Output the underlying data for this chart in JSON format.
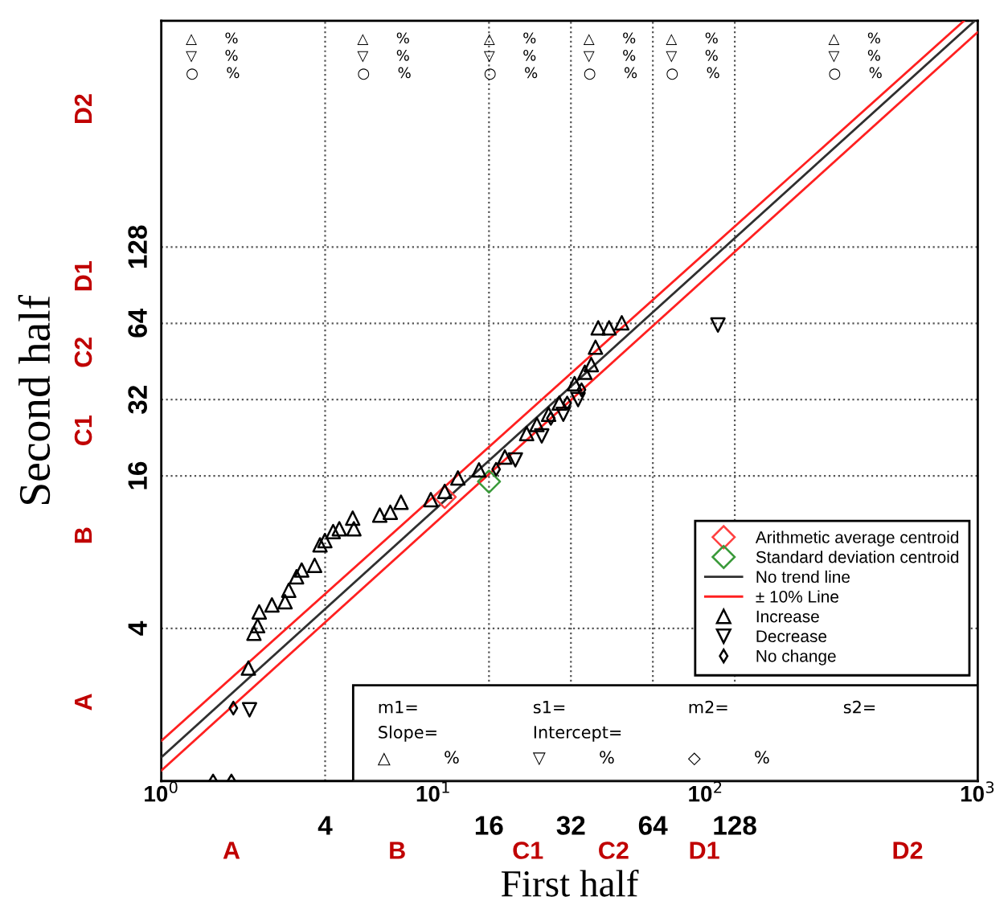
{
  "chart_data": {
    "type": "scatter",
    "xlabel": "First half",
    "ylabel": "Second half",
    "log": "xy",
    "xlim": [
      1,
      1000
    ],
    "ylim": [
      1,
      1000
    ],
    "xticks": [
      {
        "value": 1,
        "label": "10$^{0}$"
      },
      {
        "value": 10,
        "label": "10$^{1}$"
      },
      {
        "value": 100,
        "label": "10$^{2}$"
      },
      {
        "value": 1000,
        "label": "10$^{3}$"
      }
    ],
    "yticks": [
      4,
      16,
      32,
      64,
      128
    ],
    "grid": "y",
    "legend": "right",
    "series": [
      {
        "name": "Arithmetic average centroid",
        "marker": "diamond",
        "color": "#ff4040",
        "x": [
          11.0
        ],
        "values": [
          13.2
        ]
      },
      {
        "name": "Standard deviation centroid",
        "marker": "diamond",
        "color": "#3a9a3a",
        "x": [
          16.0
        ],
        "values": [
          15.2
        ]
      },
      {
        "name": "No trend line",
        "type": "line",
        "color": "#303030",
        "x": [
          1,
          975
        ],
        "values": [
          1.24,
          1000
        ]
      },
      {
        "name": "± 10% Line",
        "type": "line",
        "color": "#ff2020",
        "x": [
          1,
          890
        ],
        "values": [
          1.44,
          1000
        ]
      },
      {
        "type": "line",
        "color": "#ff2020",
        "x": [
          1,
          1000
        ],
        "values": [
          1.1,
          903
        ]
      },
      {
        "name": "Increase",
        "marker": "triangle",
        "color": "#000000",
        "x": [
          2.09,
          2.19,
          2.26,
          2.29,
          2.55,
          2.85,
          2.94,
          3.14,
          3.28,
          3.66,
          3.83,
          3.99,
          4.28,
          4.51,
          5.05,
          5.1,
          6.35,
          6.94,
          7.6,
          9.78,
          11.0,
          12.3,
          14.7,
          18.3,
          22.0,
          24.0,
          26.5,
          29.0,
          33.0,
          36.0,
          38.0,
          39.4,
          40.3,
          44.2,
          49.2
        ],
        "values": [
          2.79,
          3.83,
          4.1,
          4.65,
          4.95,
          5.1,
          5.66,
          6.4,
          6.8,
          7.1,
          8.55,
          8.88,
          9.65,
          9.9,
          10.9,
          9.9,
          11.2,
          11.5,
          12.6,
          12.9,
          13.9,
          15.7,
          16.9,
          19.0,
          23.5,
          25.5,
          28.0,
          31.0,
          37.0,
          41.0,
          44.0,
          51.5,
          61.4,
          61.4,
          64.3
        ]
      },
      {
        "name": "Decrease",
        "marker": "triangle_down",
        "color": "#000000",
        "x": [
          2.11,
          20.0,
          25.0,
          30.0,
          34.0,
          111.0
        ],
        "values": [
          1.91,
          18.5,
          23.0,
          28.0,
          32.0,
          63.0
        ]
      },
      {
        "name": "No change",
        "marker": "diamond_small",
        "color": "#000000",
        "x": [
          1.84,
          1.55,
          1.81,
          17.0,
          27.0,
          31.0,
          35.0
        ],
        "values": [
          1.94,
          1.0,
          1.0,
          17.0,
          27.0,
          31.0,
          35.0
        ]
      }
    ],
    "ref_lines": [
      {
        "axis": "x",
        "value": 4,
        "label": "4",
        "line_style": "dotted"
      },
      {
        "axis": "x",
        "value": 16,
        "label": "16",
        "line_style": "dotted"
      },
      {
        "axis": "x",
        "value": 32,
        "label": "32",
        "line_style": "dotted"
      },
      {
        "axis": "x",
        "value": 64,
        "label": "64",
        "line_style": "dotted"
      },
      {
        "axis": "x",
        "value": 128,
        "label": "128",
        "line_style": "dotted"
      }
    ],
    "annotations": [
      "△      %\n▽      %\n○      %",
      "△      %\n▽      %\n○      %",
      "△      %\n▽      %\n○      %",
      "△      %\n▽      %\n○      %",
      "△      %\n▽      %\n○      %",
      "△      %\n▽      %\n○      %",
      "m1=",
      "s1=",
      "m2=",
      "s2=",
      "Slope=",
      "Intercept=",
      "△          %",
      "▽          %",
      "◇          %",
      "A",
      "B",
      "C1",
      "C2",
      "D1",
      "D2",
      "A",
      "B",
      "C1",
      "C2",
      "D1",
      "D2"
    ]
  }
}
